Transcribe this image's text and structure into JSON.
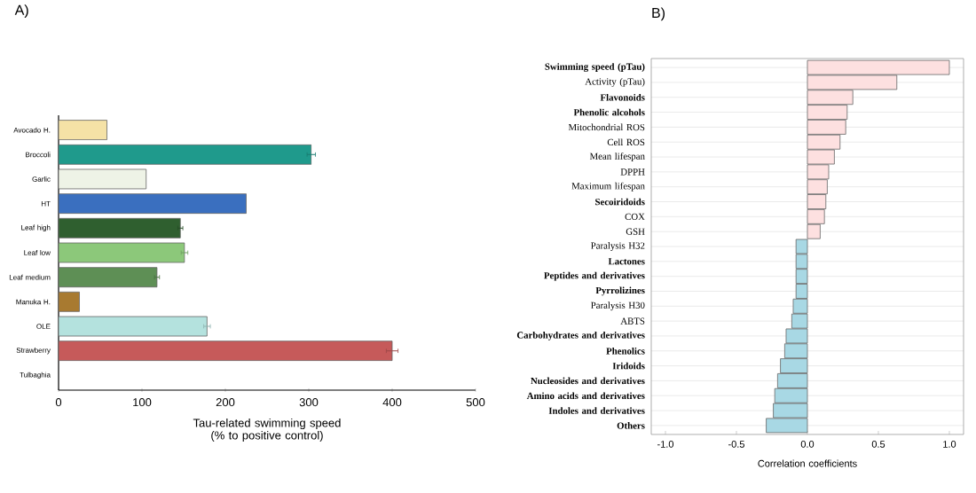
{
  "chart_data": [
    {
      "type": "bar",
      "orientation": "horizontal",
      "title": "A)",
      "xlabel": "Tau-related swimming speed (% to positive control)",
      "categories": [
        "Avocado H.",
        "Broccoli",
        "Garlic",
        "HT",
        "Leaf high",
        "Leaf low",
        "Leaf medium",
        "Manuka H.",
        "OLE",
        "Strawberry",
        "Tulbaghia"
      ],
      "values": [
        58,
        303,
        105,
        225,
        146,
        151,
        118,
        25,
        178,
        400,
        null
      ],
      "errors": [
        null,
        5,
        null,
        null,
        3,
        4,
        3,
        null,
        4,
        7,
        null
      ],
      "colors": [
        "#f5e2a6",
        "#1f9a8c",
        "#eef3e6",
        "#3a6fbf",
        "#2f5f2f",
        "#8cc87a",
        "#5e8f55",
        "#a87a30",
        "#b4e2de",
        "#c65a5a",
        "#cccccc"
      ],
      "xlim": [
        0,
        500
      ],
      "xticks": [
        0,
        100,
        200,
        300,
        400,
        500
      ]
    },
    {
      "type": "bar",
      "orientation": "horizontal",
      "title": "B)",
      "xlabel": "Correlation coefficients",
      "grid": "y",
      "categories": [
        "**Swimming speed (pTau)**",
        "Activity (pTau)",
        "**Flavonoids**",
        "**Phenolic alcohols**",
        "Mitochondrial ROS",
        "Cell ROS",
        "Mean lifespan",
        "DPPH",
        "Maximum lifespan",
        "**Secoiridoids**",
        "COX",
        "GSH",
        "Paralysis H32",
        "**Lactones**",
        "**Peptides and derivatives**",
        "**Pyrrolizines**",
        "Paralysis H30",
        "ABTS",
        "**Carbohydrates and derivatives**",
        "**Phenolics**",
        "**Iridoids**",
        "**Nucleosides and derivatives**",
        "**Amino acids and derivatives**",
        "**Indoles and derivatives**",
        "**Others**"
      ],
      "values": [
        1.0,
        0.63,
        0.32,
        0.28,
        0.27,
        0.23,
        0.19,
        0.15,
        0.14,
        0.13,
        0.12,
        0.09,
        -0.08,
        -0.08,
        -0.08,
        -0.08,
        -0.1,
        -0.11,
        -0.15,
        -0.16,
        -0.19,
        -0.21,
        -0.23,
        -0.24,
        -0.29
      ],
      "colors": [
        "#fde0e0",
        "#fde0e0",
        "#fde0e0",
        "#fde0e0",
        "#fde0e0",
        "#fde0e0",
        "#fde0e0",
        "#fde0e0",
        "#fde0e0",
        "#fde0e0",
        "#fde0e0",
        "#fde0e0",
        "#a8d8e4",
        "#a8d8e4",
        "#a8d8e4",
        "#a8d8e4",
        "#a8d8e4",
        "#a8d8e4",
        "#a8d8e4",
        "#a8d8e4",
        "#a8d8e4",
        "#a8d8e4",
        "#a8d8e4",
        "#a8d8e4",
        "#a8d8e4"
      ],
      "xlim": [
        -1.1,
        1.1
      ],
      "xticks": [
        {
          "value": -1,
          "label": "-1.0"
        },
        {
          "value": -0.5,
          "label": "-0.5"
        },
        {
          "value": 0,
          "label": "0.0"
        },
        {
          "value": 0.5,
          "label": "0.5"
        },
        {
          "value": 1,
          "label": "1.0"
        }
      ]
    }
  ]
}
